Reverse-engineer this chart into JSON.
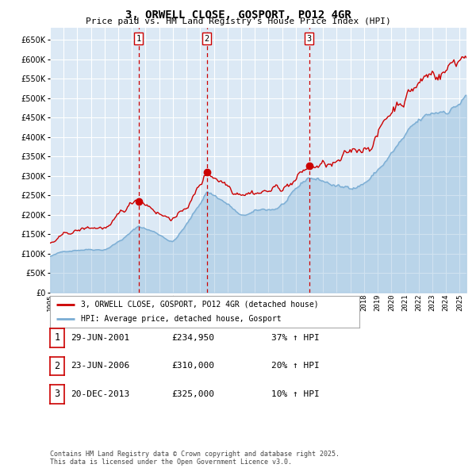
{
  "title": "3, ORWELL CLOSE, GOSPORT, PO12 4GR",
  "subtitle": "Price paid vs. HM Land Registry's House Price Index (HPI)",
  "ylim": [
    0,
    680000
  ],
  "yticks": [
    0,
    50000,
    100000,
    150000,
    200000,
    250000,
    300000,
    350000,
    400000,
    450000,
    500000,
    550000,
    600000,
    650000
  ],
  "plot_bg_color": "#dce9f5",
  "grid_color": "#ffffff",
  "line1_color": "#cc0000",
  "line2_color": "#7aadd4",
  "vline_color": "#cc0000",
  "sale1_date": 2001.49,
  "sale1_price": 234950,
  "sale2_date": 2006.48,
  "sale2_price": 310000,
  "sale3_date": 2013.97,
  "sale3_price": 325000,
  "legend_line1": "3, ORWELL CLOSE, GOSPORT, PO12 4GR (detached house)",
  "legend_line2": "HPI: Average price, detached house, Gosport",
  "table_rows": [
    {
      "num": "1",
      "date": "29-JUN-2001",
      "price": "£234,950",
      "hpi": "37% ↑ HPI"
    },
    {
      "num": "2",
      "date": "23-JUN-2006",
      "price": "£310,000",
      "hpi": "20% ↑ HPI"
    },
    {
      "num": "3",
      "date": "20-DEC-2013",
      "price": "£325,000",
      "hpi": "10% ↑ HPI"
    }
  ],
  "footnote": "Contains HM Land Registry data © Crown copyright and database right 2025.\nThis data is licensed under the Open Government Licence v3.0.",
  "xmin": 1995.0,
  "xmax": 2025.5
}
